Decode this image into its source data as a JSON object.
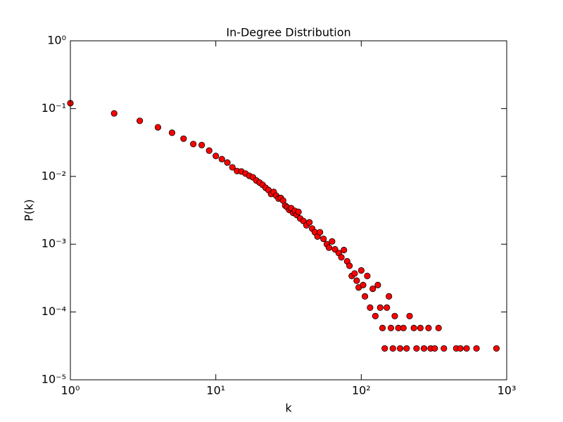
{
  "chart_data": {
    "type": "scatter",
    "title": "In-Degree Distribution",
    "x_label": "k",
    "y_label": "P(k)",
    "log_x": true,
    "log_y": true,
    "grid": false,
    "xlim": [
      1,
      1000
    ],
    "ylim": [
      1e-05,
      1
    ],
    "xticks": [
      {
        "value": 1,
        "label": "10⁰"
      },
      {
        "value": 10,
        "label": "10¹"
      },
      {
        "value": 100,
        "label": "10²"
      },
      {
        "value": 1000,
        "label": "10³"
      }
    ],
    "yticks": [
      {
        "value": 1e-05,
        "label": "10⁻⁵"
      },
      {
        "value": 0.0001,
        "label": "10⁻⁴"
      },
      {
        "value": 0.001,
        "label": "10⁻³"
      },
      {
        "value": 0.01,
        "label": "10⁻²"
      },
      {
        "value": 0.1,
        "label": "10⁻¹"
      },
      {
        "value": 1,
        "label": "10⁰"
      }
    ],
    "series": [
      {
        "color": "#ff0000",
        "x": [
          1,
          2,
          3,
          4,
          5,
          6,
          7,
          8,
          9,
          10,
          11,
          12,
          13,
          14,
          15,
          16,
          17,
          18,
          19,
          20,
          21,
          22,
          23,
          24,
          25,
          26,
          27,
          28,
          29,
          30,
          31,
          32,
          33,
          34,
          35,
          36,
          37,
          38,
          40,
          42,
          44,
          46,
          48,
          50,
          52,
          55,
          58,
          60,
          63,
          66,
          70,
          73,
          76,
          80,
          83,
          86,
          90,
          93,
          96,
          100,
          103,
          106,
          110,
          115,
          120,
          125,
          130,
          135,
          140,
          145,
          150,
          155,
          160,
          165,
          170,
          180,
          185,
          195,
          205,
          215,
          230,
          240,
          255,
          270,
          290,
          300,
          320,
          340,
          370,
          450,
          480,
          530,
          620,
          850
        ],
        "values": [
          0.12,
          0.085,
          0.066,
          0.053,
          0.044,
          0.036,
          0.03,
          0.029,
          0.024,
          0.02,
          0.018,
          0.016,
          0.0136,
          0.012,
          0.0118,
          0.011,
          0.0102,
          0.0097,
          0.0087,
          0.0081,
          0.0075,
          0.0068,
          0.0063,
          0.0055,
          0.0059,
          0.0052,
          0.0047,
          0.0048,
          0.0044,
          0.0037,
          0.0035,
          0.0032,
          0.0034,
          0.0029,
          0.0031,
          0.0027,
          0.003,
          0.0024,
          0.0022,
          0.0019,
          0.0021,
          0.0017,
          0.0015,
          0.0013,
          0.0015,
          0.0012,
          0.001,
          0.00089,
          0.0011,
          0.00084,
          0.00074,
          0.00064,
          0.00082,
          0.00056,
          0.00048,
          0.00034,
          0.00037,
          0.00029,
          0.00023,
          0.00041,
          0.00025,
          0.00017,
          0.00034,
          0.000116,
          0.00022,
          8.7e-05,
          0.00025,
          0.000116,
          5.8e-05,
          2.9e-05,
          0.000116,
          0.00017,
          5.8e-05,
          2.9e-05,
          8.7e-05,
          5.8e-05,
          2.9e-05,
          5.8e-05,
          2.9e-05,
          8.7e-05,
          5.8e-05,
          2.9e-05,
          5.8e-05,
          2.9e-05,
          5.8e-05,
          2.9e-05,
          2.9e-05,
          5.8e-05,
          2.9e-05,
          2.9e-05,
          2.9e-05,
          2.9e-05,
          2.9e-05,
          2.9e-05
        ]
      }
    ]
  }
}
